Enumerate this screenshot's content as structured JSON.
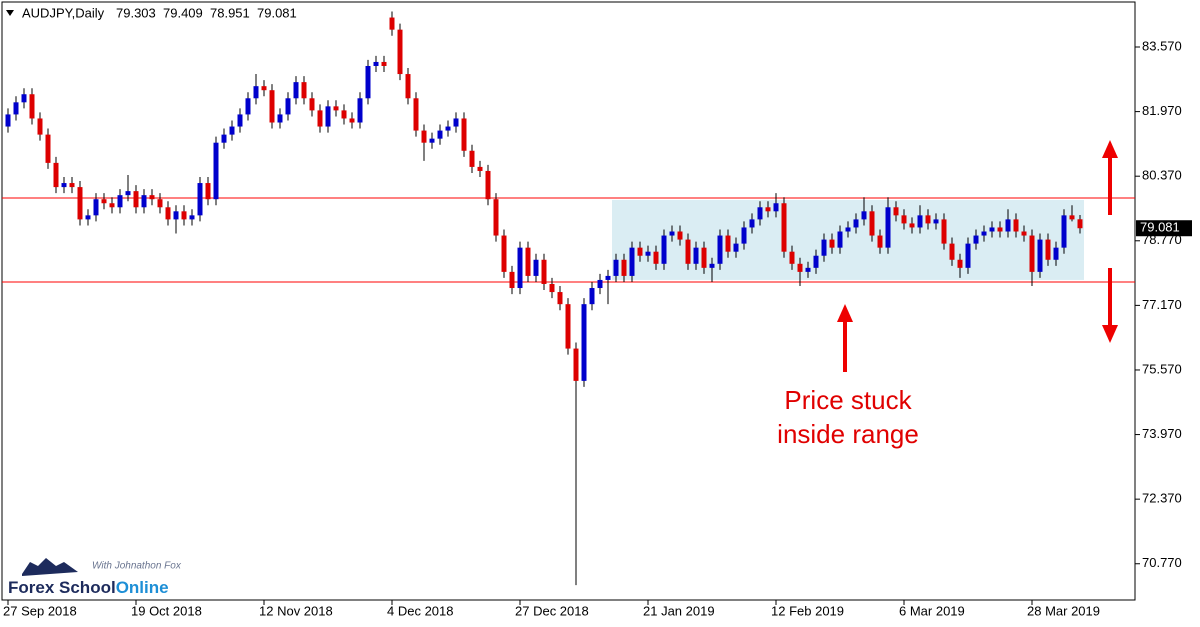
{
  "chart_data": {
    "type": "candlestick",
    "title": "AUDJPY,Daily",
    "categories": [
      "27 Sep 2018",
      null,
      null,
      null,
      null,
      null,
      null,
      null,
      null,
      null,
      null,
      null,
      null,
      null,
      null,
      null,
      "19 Oct 2018",
      null,
      null,
      null,
      null,
      null,
      null,
      null,
      null,
      null,
      null,
      null,
      null,
      null,
      null,
      null,
      "12 Nov 2018",
      null,
      null,
      null,
      null,
      null,
      null,
      null,
      null,
      null,
      null,
      null,
      null,
      null,
      null,
      null,
      "4 Dec 2018",
      null,
      null,
      null,
      null,
      null,
      null,
      null,
      null,
      null,
      null,
      null,
      null,
      null,
      null,
      null,
      "27 Dec 2018",
      null,
      null,
      null,
      null,
      null,
      null,
      null,
      null,
      null,
      null,
      null,
      null,
      null,
      null,
      null,
      "21 Jan 2019",
      null,
      null,
      null,
      null,
      null,
      null,
      null,
      null,
      null,
      null,
      null,
      null,
      null,
      null,
      null,
      "12 Feb 2019",
      null,
      null,
      null,
      null,
      null,
      null,
      null,
      null,
      null,
      null,
      null,
      null,
      null,
      null,
      null,
      "6 Mar 2019",
      null,
      null,
      null,
      null,
      null,
      null,
      null,
      null,
      null,
      null,
      null,
      null,
      null,
      null,
      null,
      "28 Mar 2019",
      null,
      null,
      null,
      null,
      null,
      null
    ],
    "open": [
      81.6,
      81.9,
      82.2,
      82.4,
      81.8,
      81.4,
      80.7,
      80.1,
      80.2,
      80.1,
      79.3,
      79.4,
      79.8,
      79.7,
      79.6,
      79.9,
      80.0,
      79.6,
      79.9,
      79.8,
      79.6,
      79.3,
      79.5,
      79.3,
      79.4,
      80.2,
      79.8,
      81.2,
      81.4,
      81.6,
      81.9,
      82.3,
      82.6,
      82.5,
      81.7,
      81.9,
      82.3,
      82.7,
      82.3,
      82.0,
      81.6,
      82.1,
      82.0,
      81.8,
      81.7,
      82.3,
      83.1,
      83.2,
      84.3,
      84.0,
      82.9,
      82.3,
      81.5,
      81.2,
      81.3,
      81.5,
      81.6,
      81.8,
      81.0,
      80.6,
      80.5,
      79.8,
      78.9,
      78.0,
      77.6,
      78.6,
      77.9,
      78.3,
      77.7,
      77.5,
      77.2,
      76.1,
      75.3,
      77.2,
      77.6,
      77.8,
      77.9,
      78.3,
      77.9,
      78.6,
      78.4,
      78.5,
      78.2,
      78.9,
      79.0,
      78.8,
      78.2,
      78.6,
      78.1,
      78.2,
      78.9,
      78.5,
      78.7,
      79.1,
      79.3,
      79.6,
      79.5,
      79.7,
      78.5,
      78.2,
      78.0,
      78.1,
      78.4,
      78.8,
      78.6,
      79.0,
      79.1,
      79.3,
      79.5,
      78.9,
      78.6,
      79.6,
      79.4,
      79.2,
      79.1,
      79.4,
      79.2,
      79.3,
      78.7,
      78.3,
      78.1,
      78.7,
      78.9,
      79.0,
      79.1,
      79.0,
      79.3,
      79.0,
      78.9,
      78.0,
      78.8,
      78.3,
      78.6,
      79.4,
      79.303
    ],
    "high": [
      82.05,
      82.35,
      82.55,
      82.55,
      81.95,
      81.55,
      80.85,
      80.35,
      80.35,
      80.25,
      79.55,
      79.95,
      79.95,
      79.85,
      80.05,
      80.4,
      80.15,
      80.05,
      80.05,
      79.95,
      79.75,
      79.65,
      79.65,
      79.55,
      80.35,
      80.35,
      81.35,
      81.55,
      81.75,
      82.05,
      82.45,
      82.9,
      82.75,
      82.65,
      82.05,
      82.45,
      82.85,
      82.85,
      82.45,
      82.15,
      82.25,
      82.25,
      82.15,
      81.95,
      82.45,
      83.25,
      83.35,
      83.35,
      84.45,
      84.15,
      83.05,
      82.45,
      81.65,
      81.45,
      81.65,
      81.75,
      81.95,
      81.95,
      81.15,
      80.75,
      80.65,
      79.95,
      79.05,
      78.15,
      78.75,
      78.75,
      78.45,
      78.45,
      77.85,
      77.65,
      77.35,
      76.25,
      77.35,
      77.75,
      77.95,
      78.05,
      78.45,
      78.45,
      78.75,
      78.75,
      78.65,
      78.65,
      79.05,
      79.15,
      79.15,
      78.95,
      78.75,
      78.75,
      78.35,
      79.05,
      79.05,
      78.85,
      79.25,
      79.45,
      79.75,
      79.75,
      79.95,
      79.85,
      78.65,
      78.35,
      78.25,
      78.55,
      78.95,
      78.95,
      79.15,
      79.25,
      79.45,
      79.85,
      79.65,
      79.05,
      79.85,
      79.75,
      79.55,
      79.35,
      79.65,
      79.55,
      79.45,
      79.45,
      78.85,
      78.45,
      78.85,
      79.05,
      79.15,
      79.25,
      79.25,
      79.55,
      79.45,
      79.15,
      79.05,
      78.95,
      78.95,
      78.75,
      79.55,
      79.65,
      79.409
    ],
    "low": [
      81.45,
      81.75,
      82.05,
      81.65,
      81.25,
      80.55,
      79.95,
      79.95,
      79.95,
      79.15,
      79.15,
      79.25,
      79.55,
      79.45,
      79.45,
      79.75,
      79.45,
      79.45,
      79.65,
      79.45,
      79.15,
      78.95,
      79.15,
      79.15,
      79.25,
      79.65,
      79.65,
      81.05,
      81.25,
      81.45,
      81.75,
      82.15,
      82.35,
      81.55,
      81.55,
      81.75,
      82.15,
      82.15,
      81.85,
      81.45,
      81.45,
      81.85,
      81.65,
      81.55,
      81.55,
      82.15,
      82.95,
      82.95,
      83.85,
      82.75,
      82.15,
      81.35,
      80.75,
      81.05,
      81.15,
      81.35,
      81.45,
      80.85,
      80.45,
      80.35,
      79.65,
      78.75,
      77.85,
      77.45,
      77.45,
      77.75,
      77.75,
      77.55,
      77.35,
      77.05,
      75.95,
      70.24,
      75.15,
      77.05,
      77.45,
      77.2,
      77.75,
      77.75,
      77.75,
      78.25,
      78.25,
      78.05,
      78.05,
      78.75,
      78.65,
      78.05,
      78.05,
      77.95,
      77.75,
      78.05,
      78.35,
      78.35,
      78.55,
      78.95,
      79.15,
      79.35,
      79.35,
      78.35,
      78.05,
      77.65,
      77.85,
      77.95,
      78.25,
      78.45,
      78.45,
      78.85,
      78.95,
      79.15,
      78.75,
      78.45,
      78.45,
      79.25,
      79.05,
      78.95,
      78.95,
      79.05,
      79.05,
      78.55,
      78.15,
      77.85,
      77.95,
      78.55,
      78.75,
      78.85,
      78.85,
      78.85,
      78.85,
      78.75,
      77.65,
      77.85,
      78.15,
      78.15,
      78.45,
      79.25,
      78.951
    ],
    "close": [
      81.9,
      82.2,
      82.4,
      81.8,
      81.4,
      80.7,
      80.1,
      80.2,
      80.1,
      79.3,
      79.4,
      79.8,
      79.7,
      79.6,
      79.9,
      80.0,
      79.6,
      79.9,
      79.8,
      79.6,
      79.3,
      79.5,
      79.3,
      79.4,
      80.2,
      79.8,
      81.2,
      81.4,
      81.6,
      81.9,
      82.3,
      82.6,
      82.5,
      81.7,
      81.9,
      82.3,
      82.7,
      82.3,
      82.0,
      81.6,
      82.1,
      82.0,
      81.8,
      81.7,
      82.3,
      83.1,
      83.2,
      83.1,
      84.0,
      82.9,
      82.3,
      81.5,
      81.2,
      81.3,
      81.5,
      81.6,
      81.8,
      81.0,
      80.6,
      80.5,
      79.8,
      78.9,
      78.0,
      77.6,
      78.6,
      77.9,
      78.3,
      77.7,
      77.5,
      77.2,
      76.1,
      75.3,
      77.2,
      77.6,
      77.8,
      77.9,
      78.3,
      77.9,
      78.6,
      78.4,
      78.5,
      78.2,
      78.9,
      79.0,
      78.8,
      78.2,
      78.6,
      78.1,
      78.2,
      78.9,
      78.5,
      78.7,
      79.1,
      79.3,
      79.6,
      79.5,
      79.7,
      78.5,
      78.2,
      78.0,
      78.1,
      78.4,
      78.8,
      78.6,
      79.0,
      79.1,
      79.3,
      79.5,
      78.9,
      78.6,
      79.6,
      79.4,
      79.2,
      79.1,
      79.4,
      79.2,
      79.3,
      78.7,
      78.3,
      78.1,
      78.7,
      78.9,
      79.0,
      79.1,
      79.0,
      79.3,
      79.0,
      78.9,
      78.0,
      78.8,
      78.3,
      78.6,
      79.4,
      79.3,
      79.081
    ],
    "up_color": "#0000cc",
    "down_color": "#dd0000",
    "wick_color": "#000000",
    "ylim": [
      69.872,
      84.685
    ],
    "yticks": [
      {
        "value": 83.57,
        "label": "83.570"
      },
      {
        "value": 81.97,
        "label": "81.970"
      },
      {
        "value": 80.37,
        "label": "80.370"
      },
      {
        "value": 78.77,
        "label": "78.770"
      },
      {
        "value": 77.17,
        "label": "77.170"
      },
      {
        "value": 75.57,
        "label": "75.570"
      },
      {
        "value": 73.97,
        "label": "73.970"
      },
      {
        "value": 72.37,
        "label": "72.370"
      },
      {
        "value": 70.77,
        "label": "70.770"
      }
    ],
    "levels": [
      {
        "value": 79.83,
        "color": "#ff0000"
      },
      {
        "value": 77.75,
        "color": "#ff0000"
      }
    ],
    "range": {
      "start": 76,
      "end": 134,
      "low": 77.8,
      "high": 79.78,
      "color": "#daedf3"
    },
    "annotation": [
      "Price stuck",
      "inside range"
    ],
    "logo": {
      "tagline": "With Johnathon Fox",
      "name": "Forex School",
      "name_accent": "Online"
    }
  }
}
